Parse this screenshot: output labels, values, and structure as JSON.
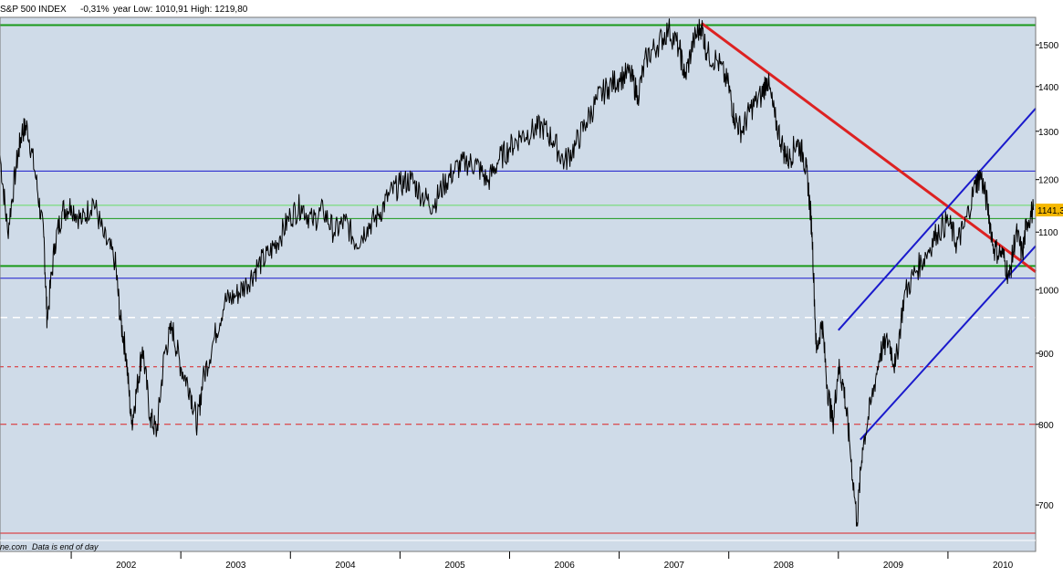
{
  "header": {
    "symbol": "S&P 500 INDEX",
    "change": "-0,31%",
    "range_text": "year Low: 1010,91 High: 1219,80"
  },
  "footer": {
    "source": "ne.com",
    "note": "Data is end of day"
  },
  "last_price_label": "1141,3",
  "colors": {
    "plot_bg": "#cfdbe8",
    "price": "#000000",
    "green": "#1a9a1a",
    "light_green": "#66dd66",
    "blue": "#1a1acc",
    "red": "#dd2222",
    "badge": "#f5b800"
  },
  "chart_data": {
    "type": "line",
    "scale": "log",
    "ylim": [
      660,
      1570
    ],
    "xlim": [
      2001.35,
      2010.8
    ],
    "x_ticks": [
      "2002",
      "2003",
      "2004",
      "2005",
      "2006",
      "2007",
      "2008",
      "2009",
      "2010"
    ],
    "y_ticks": [
      700,
      800,
      900,
      1000,
      1100,
      1200,
      1300,
      1400,
      1500
    ],
    "series": [
      {
        "values": [
          [
            2001.35,
            1250
          ],
          [
            2001.42,
            1100
          ],
          [
            2001.5,
            1230
          ],
          [
            2001.55,
            1300
          ],
          [
            2001.6,
            1310
          ],
          [
            2001.68,
            1200
          ],
          [
            2001.75,
            1090
          ],
          [
            2001.78,
            950
          ],
          [
            2001.85,
            1080
          ],
          [
            2001.92,
            1140
          ],
          [
            2002.0,
            1150
          ],
          [
            2002.1,
            1120
          ],
          [
            2002.2,
            1160
          ],
          [
            2002.3,
            1090
          ],
          [
            2002.4,
            1050
          ],
          [
            2002.45,
            950
          ],
          [
            2002.5,
            900
          ],
          [
            2002.55,
            800
          ],
          [
            2002.6,
            850
          ],
          [
            2002.65,
            910
          ],
          [
            2002.72,
            810
          ],
          [
            2002.78,
            790
          ],
          [
            2002.85,
            900
          ],
          [
            2002.92,
            940
          ],
          [
            2003.0,
            880
          ],
          [
            2003.08,
            850
          ],
          [
            2003.15,
            800
          ],
          [
            2003.2,
            860
          ],
          [
            2003.3,
            920
          ],
          [
            2003.4,
            980
          ],
          [
            2003.5,
            990
          ],
          [
            2003.6,
            1010
          ],
          [
            2003.7,
            1040
          ],
          [
            2003.8,
            1060
          ],
          [
            2003.9,
            1090
          ],
          [
            2004.0,
            1130
          ],
          [
            2004.1,
            1150
          ],
          [
            2004.2,
            1120
          ],
          [
            2004.3,
            1140
          ],
          [
            2004.4,
            1100
          ],
          [
            2004.5,
            1120
          ],
          [
            2004.6,
            1080
          ],
          [
            2004.7,
            1110
          ],
          [
            2004.8,
            1130
          ],
          [
            2004.9,
            1170
          ],
          [
            2005.0,
            1190
          ],
          [
            2005.1,
            1200
          ],
          [
            2005.2,
            1170
          ],
          [
            2005.3,
            1150
          ],
          [
            2005.4,
            1190
          ],
          [
            2005.5,
            1220
          ],
          [
            2005.6,
            1235
          ],
          [
            2005.7,
            1230
          ],
          [
            2005.8,
            1195
          ],
          [
            2005.9,
            1240
          ],
          [
            2006.0,
            1265
          ],
          [
            2006.1,
            1290
          ],
          [
            2006.2,
            1300
          ],
          [
            2006.3,
            1310
          ],
          [
            2006.4,
            1280
          ],
          [
            2006.5,
            1235
          ],
          [
            2006.6,
            1270
          ],
          [
            2006.7,
            1320
          ],
          [
            2006.8,
            1370
          ],
          [
            2006.9,
            1400
          ],
          [
            2007.0,
            1420
          ],
          [
            2007.1,
            1430
          ],
          [
            2007.17,
            1380
          ],
          [
            2007.25,
            1470
          ],
          [
            2007.35,
            1500
          ],
          [
            2007.45,
            1540
          ],
          [
            2007.55,
            1490
          ],
          [
            2007.6,
            1420
          ],
          [
            2007.68,
            1510
          ],
          [
            2007.75,
            1550
          ],
          [
            2007.8,
            1480
          ],
          [
            2007.9,
            1460
          ],
          [
            2008.0,
            1400
          ],
          [
            2008.05,
            1330
          ],
          [
            2008.12,
            1300
          ],
          [
            2008.2,
            1350
          ],
          [
            2008.3,
            1380
          ],
          [
            2008.35,
            1420
          ],
          [
            2008.42,
            1330
          ],
          [
            2008.5,
            1260
          ],
          [
            2008.55,
            1240
          ],
          [
            2008.62,
            1280
          ],
          [
            2008.68,
            1250
          ],
          [
            2008.72,
            1200
          ],
          [
            2008.76,
            1100
          ],
          [
            2008.8,
            900
          ],
          [
            2008.85,
            950
          ],
          [
            2008.9,
            850
          ],
          [
            2008.95,
            800
          ],
          [
            2009.0,
            880
          ],
          [
            2009.05,
            850
          ],
          [
            2009.1,
            780
          ],
          [
            2009.17,
            680
          ],
          [
            2009.22,
            770
          ],
          [
            2009.3,
            830
          ],
          [
            2009.38,
            900
          ],
          [
            2009.46,
            920
          ],
          [
            2009.52,
            880
          ],
          [
            2009.6,
            990
          ],
          [
            2009.7,
            1030
          ],
          [
            2009.8,
            1060
          ],
          [
            2009.9,
            1100
          ],
          [
            2010.0,
            1120
          ],
          [
            2010.08,
            1080
          ],
          [
            2010.15,
            1110
          ],
          [
            2010.25,
            1190
          ],
          [
            2010.3,
            1210
          ],
          [
            2010.36,
            1150
          ],
          [
            2010.42,
            1070
          ],
          [
            2010.5,
            1060
          ],
          [
            2010.56,
            1020
          ],
          [
            2010.62,
            1100
          ],
          [
            2010.68,
            1060
          ],
          [
            2010.72,
            1120
          ],
          [
            2010.78,
            1141
          ]
        ]
      }
    ],
    "horizontal_lines": [
      {
        "y": 1550,
        "color": "#1a9a1a",
        "width": 2,
        "dash": ""
      },
      {
        "y": 1217,
        "color": "#1a1acc",
        "width": 1,
        "dash": ""
      },
      {
        "y": 1150,
        "color": "#66dd66",
        "width": 1,
        "dash": ""
      },
      {
        "y": 1125,
        "color": "#1a9a1a",
        "width": 1,
        "dash": ""
      },
      {
        "y": 1040,
        "color": "#1a9a1a",
        "width": 2,
        "dash": ""
      },
      {
        "y": 1019,
        "color": "#1a1acc",
        "width": 1,
        "dash": ""
      },
      {
        "y": 955,
        "color": "#ffffff",
        "width": 1.5,
        "dash": "8,6"
      },
      {
        "y": 880,
        "color": "#dd2222",
        "width": 1,
        "dash": "4,4"
      },
      {
        "y": 800,
        "color": "#dd2222",
        "width": 1,
        "dash": "7,5"
      },
      {
        "y": 668,
        "color": "#dd2222",
        "width": 1,
        "dash": ""
      }
    ],
    "trend_lines": [
      {
        "color": "#dd2222",
        "width": 3,
        "from": [
          2007.75,
          1555
        ],
        "to": [
          2010.8,
          1030
        ]
      },
      {
        "color": "#1a1acc",
        "width": 2,
        "from": [
          2009.0,
          935
        ],
        "to": [
          2010.8,
          1350
        ]
      },
      {
        "color": "#1a1acc",
        "width": 2,
        "from": [
          2009.2,
          780
        ],
        "to": [
          2010.8,
          1075
        ]
      }
    ]
  }
}
